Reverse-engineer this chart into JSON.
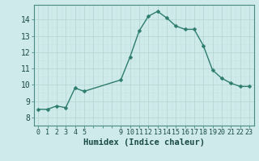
{
  "x": [
    0,
    1,
    2,
    3,
    4,
    5,
    9,
    10,
    11,
    12,
    13,
    14,
    15,
    16,
    17,
    18,
    19,
    20,
    21,
    22,
    23
  ],
  "y": [
    8.5,
    8.5,
    8.7,
    8.6,
    9.8,
    9.6,
    10.3,
    11.7,
    13.3,
    14.2,
    14.5,
    14.1,
    13.6,
    13.4,
    13.4,
    12.4,
    10.9,
    10.4,
    10.1,
    9.9,
    9.9
  ],
  "line_color": "#2d7d6e",
  "marker": "D",
  "marker_size": 2.5,
  "bg_color": "#ceeaea",
  "xlabel": "Humidex (Indice chaleur)",
  "xlabel_fontsize": 7.5,
  "ylabel_ticks": [
    8,
    9,
    10,
    11,
    12,
    13,
    14
  ],
  "ylim": [
    7.6,
    14.9
  ],
  "xlim": [
    -0.5,
    23.5
  ],
  "tick_fontsize": 7
}
